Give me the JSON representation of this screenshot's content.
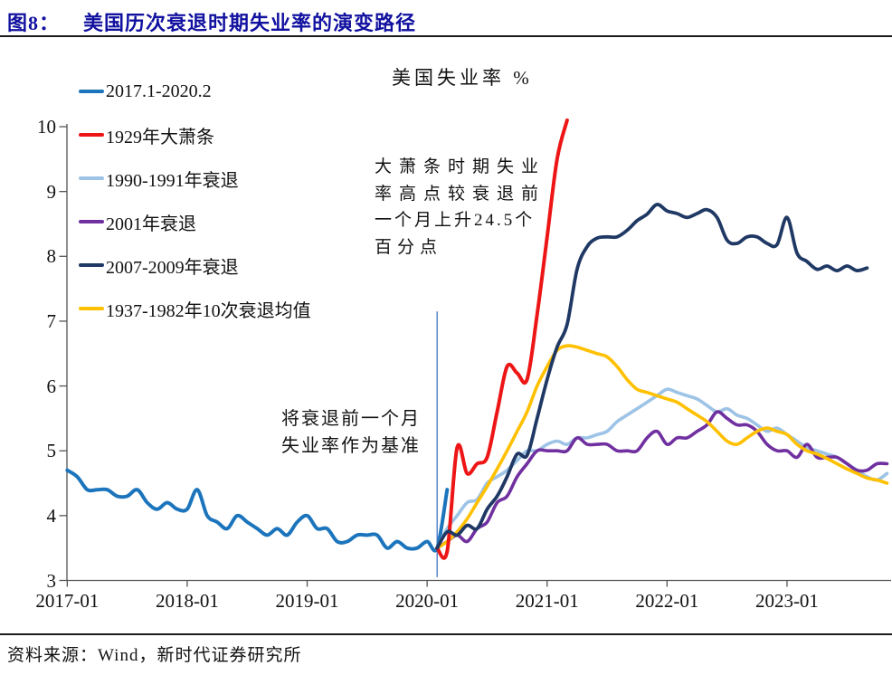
{
  "header": {
    "fig_label": "图8：",
    "title": "美国历次衰退时期失业率的演变路径"
  },
  "footer": {
    "source": "资料来源：Wind，新时代证券研究所"
  },
  "annotations": {
    "depression": {
      "lines": [
        "大萧条时期失业",
        "率高点较衰退前",
        "一个月上升24.5个",
        "百分点"
      ]
    },
    "baseline": {
      "lines": [
        "将衰退前一个月",
        "失业率作为基准"
      ]
    }
  },
  "chart_data": {
    "type": "line",
    "title": "美国失业率 %",
    "ylabel": "",
    "xlabel": "",
    "ylim": [
      3,
      10
    ],
    "grid": false,
    "legend_position": "left-top-vertical",
    "y_ticks": [
      3,
      4,
      5,
      6,
      7,
      8,
      9,
      10
    ],
    "x_ticks": [
      {
        "month": -37,
        "label": "2017-01"
      },
      {
        "month": -25,
        "label": "2018-01"
      },
      {
        "month": -13,
        "label": "2019-01"
      },
      {
        "month": -1,
        "label": "2020-01"
      },
      {
        "month": 11,
        "label": "2021-01"
      },
      {
        "month": 23,
        "label": "2022-01"
      },
      {
        "month": 35,
        "label": "2023-01"
      }
    ],
    "x_unit_note": "month 0 = 2020-02, the month before recession; recession paths are re-based to the 2020-02 unemployment level (3.5%)",
    "marker_line": {
      "x_month": 0.0,
      "value_from": 3.05,
      "value_to": 7.15,
      "color": "#4472C4"
    },
    "series": [
      {
        "name": "2017.1-2020.2",
        "color": "#1C75BC",
        "width": 4,
        "draw_order": 1,
        "start_month": -37,
        "values": [
          4.7,
          4.6,
          4.4,
          4.4,
          4.4,
          4.3,
          4.3,
          4.4,
          4.2,
          4.1,
          4.2,
          4.1,
          4.1,
          4.4,
          4.0,
          3.9,
          3.8,
          4.0,
          3.9,
          3.8,
          3.7,
          3.8,
          3.7,
          3.9,
          4.0,
          3.8,
          3.8,
          3.6,
          3.6,
          3.7,
          3.7,
          3.7,
          3.5,
          3.6,
          3.5,
          3.5,
          3.6,
          3.5,
          4.4
        ]
      },
      {
        "name": "1929年大萧条",
        "color": "#ED1515",
        "width": 4,
        "draw_order": 5,
        "start_month": 0,
        "values": [
          3.5,
          3.45,
          5.05,
          4.65,
          4.8,
          4.9,
          5.6,
          6.3,
          6.2,
          6.1,
          7.1,
          8.3,
          9.5,
          10.1
        ]
      },
      {
        "name": "1990-1991年衰退",
        "color": "#9DC3E6",
        "width": 3.6,
        "draw_order": 2,
        "start_month": 0,
        "values": [
          3.5,
          3.8,
          4.0,
          4.2,
          4.25,
          4.5,
          4.6,
          4.7,
          4.85,
          5.0,
          5.0,
          5.1,
          5.15,
          5.1,
          5.2,
          5.2,
          5.25,
          5.3,
          5.45,
          5.55,
          5.65,
          5.75,
          5.85,
          5.95,
          5.9,
          5.85,
          5.8,
          5.7,
          5.6,
          5.65,
          5.55,
          5.5,
          5.4,
          5.3,
          5.35,
          5.25,
          5.15,
          5.05,
          5.0,
          4.95,
          4.9,
          4.8,
          4.7,
          4.6,
          4.55,
          4.65
        ]
      },
      {
        "name": "2001年衰退",
        "color": "#7030A0",
        "width": 3.6,
        "draw_order": 3,
        "start_month": 0,
        "values": [
          3.5,
          3.6,
          3.7,
          3.6,
          3.8,
          3.9,
          4.2,
          4.3,
          4.6,
          4.8,
          5.0,
          5.0,
          5.0,
          5.0,
          5.2,
          5.1,
          5.1,
          5.1,
          5.0,
          5.0,
          5.0,
          5.2,
          5.3,
          5.1,
          5.2,
          5.2,
          5.3,
          5.4,
          5.6,
          5.5,
          5.4,
          5.4,
          5.3,
          5.1,
          5.0,
          5.0,
          4.9,
          5.1,
          4.9,
          4.9,
          4.9,
          4.8,
          4.7,
          4.7,
          4.8,
          4.8
        ]
      },
      {
        "name": "2007-2009年衰退",
        "color": "#1F3864",
        "width": 3.8,
        "draw_order": 6,
        "start_month": 0,
        "values": [
          3.5,
          3.75,
          3.7,
          3.85,
          3.8,
          4.1,
          4.3,
          4.6,
          4.95,
          4.93,
          5.5,
          6.1,
          6.6,
          6.95,
          7.8,
          8.15,
          8.28,
          8.3,
          8.3,
          8.4,
          8.55,
          8.65,
          8.8,
          8.7,
          8.66,
          8.6,
          8.66,
          8.72,
          8.6,
          8.25,
          8.2,
          8.3,
          8.3,
          8.2,
          8.18,
          8.6,
          8.05,
          7.92,
          7.8,
          7.85,
          7.78,
          7.85,
          7.78,
          7.82
        ]
      },
      {
        "name": "1937-1982年10次衰退均值",
        "color": "#FFC000",
        "width": 3.6,
        "draw_order": 4,
        "start_month": 0,
        "values": [
          3.5,
          3.6,
          3.75,
          3.95,
          4.2,
          4.45,
          4.72,
          5.0,
          5.3,
          5.6,
          6.0,
          6.3,
          6.55,
          6.62,
          6.6,
          6.55,
          6.5,
          6.45,
          6.3,
          6.1,
          5.95,
          5.9,
          5.85,
          5.8,
          5.75,
          5.65,
          5.55,
          5.45,
          5.3,
          5.15,
          5.1,
          5.2,
          5.3,
          5.35,
          5.3,
          5.25,
          5.1,
          5.0,
          4.95,
          4.88,
          4.8,
          4.72,
          4.65,
          4.58,
          4.55,
          4.5
        ]
      }
    ]
  }
}
